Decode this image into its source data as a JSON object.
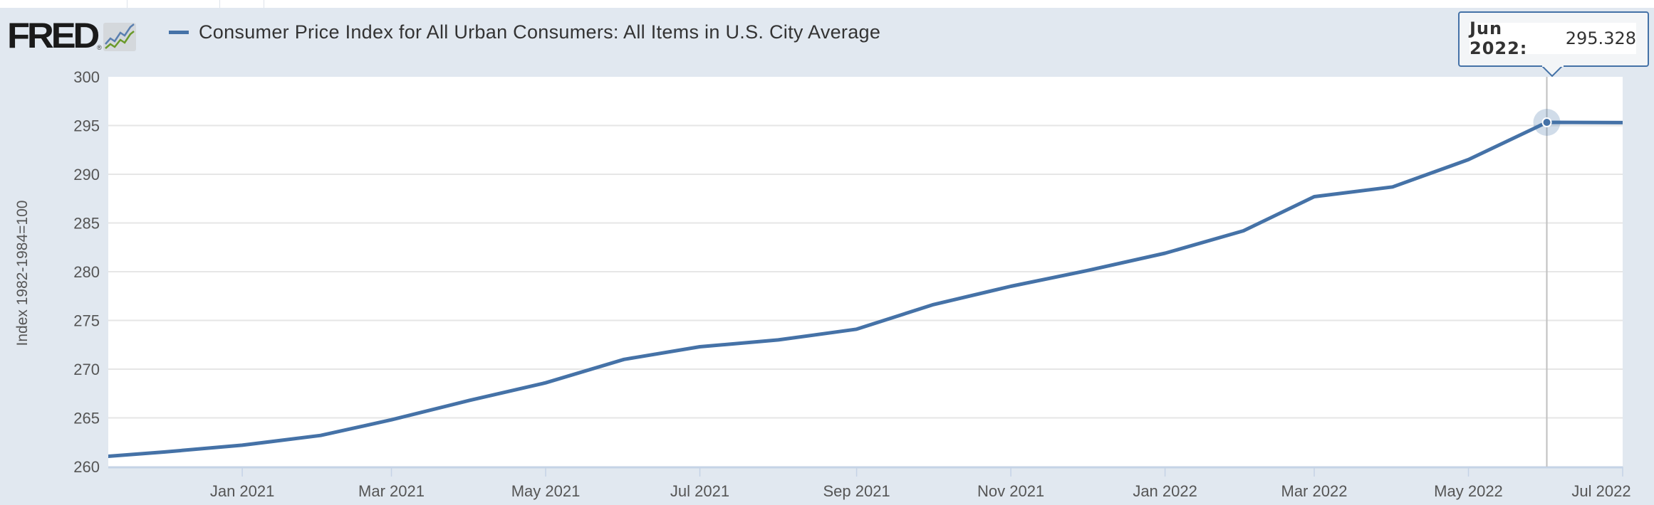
{
  "header": {
    "logo_text": "FRED",
    "logo_registered": "®",
    "logo_icon": "line-chart-icon"
  },
  "chart_data": {
    "type": "line",
    "title": "",
    "legend": [
      "Consumer Price Index for All Urban Consumers: All Items in U.S. City Average"
    ],
    "legend_placement": "top-left",
    "xlabel": "",
    "ylabel": "Index 1982-1984=100",
    "ylim": [
      260,
      300
    ],
    "yticks": [
      260,
      265,
      270,
      275,
      280,
      285,
      290,
      295,
      300
    ],
    "xlim": [
      "2020-11-09",
      "2022-07-01"
    ],
    "xticks": [
      {
        "date": "2021-01-01",
        "label": "Jan 2021"
      },
      {
        "date": "2021-03-01",
        "label": "Mar 2021"
      },
      {
        "date": "2021-05-01",
        "label": "May 2021"
      },
      {
        "date": "2021-07-01",
        "label": "Jul 2021"
      },
      {
        "date": "2021-09-01",
        "label": "Sep 2021"
      },
      {
        "date": "2021-11-01",
        "label": "Nov 2021"
      },
      {
        "date": "2022-01-01",
        "label": "Jan 2022"
      },
      {
        "date": "2022-03-01",
        "label": "Mar 2022"
      },
      {
        "date": "2022-05-01",
        "label": "May 2022"
      },
      {
        "date": "2022-07-01",
        "label": "Jul 2022"
      }
    ],
    "grid": true,
    "series": [
      {
        "name": "Consumer Price Index for All Urban Consumers: All Items in U.S. City Average",
        "color": "#4572a7",
        "x": [
          "2020-11-01",
          "2020-12-01",
          "2021-01-01",
          "2021-02-01",
          "2021-03-01",
          "2021-04-01",
          "2021-05-01",
          "2021-06-01",
          "2021-07-01",
          "2021-08-01",
          "2021-09-01",
          "2021-10-01",
          "2021-11-01",
          "2021-12-01",
          "2022-01-01",
          "2022-02-01",
          "2022-03-01",
          "2022-04-01",
          "2022-05-01",
          "2022-06-01",
          "2022-07-01"
        ],
        "y": [
          260.9,
          261.5,
          262.2,
          263.2,
          264.8,
          266.8,
          268.6,
          271.0,
          272.3,
          273.0,
          274.1,
          276.6,
          278.5,
          280.1,
          281.9,
          284.2,
          287.7,
          288.7,
          291.5,
          295.328,
          295.3
        ]
      }
    ],
    "tooltip": {
      "date": "2022-06-01",
      "label": "Jun 2022:",
      "value": "295.328"
    }
  }
}
